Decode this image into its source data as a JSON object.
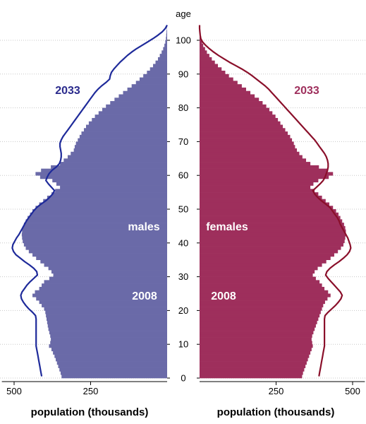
{
  "chart_data": {
    "type": "population-pyramid",
    "title": "",
    "axis_title": "age",
    "x_axis_label": "population (thousands)",
    "age_ticks": [
      0,
      10,
      20,
      30,
      40,
      50,
      60,
      70,
      80,
      90,
      100
    ],
    "pop_ticks": [
      500,
      250
    ],
    "pop_max": 540,
    "age_max": 105,
    "grid": true,
    "colors": {
      "male_bar": "#6a6aa8",
      "female_bar": "#9e2f5c",
      "male_line": "#1e2a9a",
      "female_line": "#8a0f2a",
      "male_text": "#2a2a8c",
      "female_text": "#9e2f5c",
      "grid": "#c8c8c8"
    },
    "labels": {
      "males": "males",
      "females": "females",
      "bar_year": "2008",
      "line_year": "2033"
    },
    "ages": [
      0,
      1,
      2,
      3,
      4,
      5,
      6,
      7,
      8,
      9,
      10,
      11,
      12,
      13,
      14,
      15,
      16,
      17,
      18,
      19,
      20,
      21,
      22,
      23,
      24,
      25,
      26,
      27,
      28,
      29,
      30,
      31,
      32,
      33,
      34,
      35,
      36,
      37,
      38,
      39,
      40,
      41,
      42,
      43,
      44,
      45,
      46,
      47,
      48,
      49,
      50,
      51,
      52,
      53,
      54,
      55,
      56,
      57,
      58,
      59,
      60,
      61,
      62,
      63,
      64,
      65,
      66,
      67,
      68,
      69,
      70,
      71,
      72,
      73,
      74,
      75,
      76,
      77,
      78,
      79,
      80,
      81,
      82,
      83,
      84,
      85,
      86,
      87,
      88,
      89,
      90,
      91,
      92,
      93,
      94,
      95,
      96,
      97,
      98,
      99,
      100,
      101,
      102,
      103,
      104
    ],
    "series": [
      {
        "name": "males 2008",
        "values": [
          345,
          348,
          352,
          356,
          360,
          364,
          368,
          373,
          378,
          386,
          382,
          380,
          382,
          385,
          388,
          390,
          392,
          394,
          396,
          398,
          402,
          410,
          418,
          428,
          440,
          432,
          418,
          410,
          402,
          385,
          372,
          378,
          388,
          402,
          414,
          428,
          440,
          452,
          462,
          468,
          472,
          474,
          475,
          474,
          472,
          468,
          462,
          456,
          448,
          440,
          430,
          418,
          405,
          392,
          378,
          366,
          350,
          362,
          375,
          415,
          430,
          412,
          380,
          350,
          338,
          325,
          315,
          305,
          302,
          298,
          292,
          286,
          280,
          272,
          265,
          256,
          246,
          236,
          224,
          212,
          200,
          186,
          172,
          158,
          144,
          130,
          116,
          102,
          90,
          78,
          66,
          56,
          46,
          38,
          30,
          24,
          18,
          13,
          9,
          6,
          4,
          3,
          2,
          1,
          0
        ]
      },
      {
        "name": "males 2033",
        "values": [
          410,
          412,
          414,
          416,
          418,
          420,
          422,
          424,
          426,
          428,
          428,
          428,
          428,
          428,
          428,
          428,
          428,
          428,
          430,
          440,
          452,
          462,
          470,
          476,
          478,
          474,
          466,
          458,
          448,
          436,
          424,
          426,
          436,
          450,
          466,
          480,
          494,
          502,
          506,
          504,
          498,
          492,
          484,
          478,
          472,
          466,
          460,
          452,
          444,
          436,
          426,
          412,
          396,
          384,
          374,
          368,
          378,
          388,
          396,
          392,
          386,
          376,
          362,
          352,
          348,
          346,
          346,
          348,
          350,
          350,
          346,
          340,
          332,
          324,
          316,
          308,
          300,
          292,
          284,
          276,
          268,
          260,
          252,
          244,
          236,
          226,
          214,
          200,
          188,
          186,
          182,
          174,
          164,
          154,
          142,
          130,
          116,
          100,
          82,
          64,
          46,
          30,
          16,
          6,
          0
        ]
      },
      {
        "name": "females 2008",
        "values": [
          335,
          338,
          342,
          346,
          350,
          354,
          358,
          362,
          366,
          370,
          368,
          366,
          368,
          372,
          376,
          380,
          384,
          388,
          392,
          396,
          400,
          404,
          410,
          418,
          428,
          420,
          408,
          400,
          392,
          380,
          370,
          376,
          386,
          400,
          414,
          428,
          440,
          452,
          462,
          470,
          474,
          476,
          478,
          478,
          476,
          472,
          466,
          460,
          454,
          446,
          436,
          424,
          412,
          400,
          388,
          376,
          362,
          372,
          388,
          422,
          436,
          418,
          390,
          362,
          348,
          336,
          326,
          318,
          312,
          308,
          302,
          296,
          288,
          280,
          272,
          264,
          256,
          248,
          238,
          228,
          218,
          206,
          194,
          180,
          166,
          152,
          138,
          124,
          110,
          96,
          84,
          72,
          60,
          50,
          40,
          32,
          24,
          18,
          12,
          8,
          5,
          3,
          2,
          1,
          0
        ]
      },
      {
        "name": "females 2033",
        "values": [
          390,
          392,
          394,
          396,
          398,
          400,
          402,
          404,
          406,
          408,
          408,
          408,
          408,
          408,
          408,
          408,
          408,
          408,
          410,
          420,
          432,
          444,
          454,
          462,
          466,
          460,
          450,
          440,
          430,
          420,
          412,
          416,
          426,
          440,
          456,
          470,
          482,
          490,
          494,
          492,
          488,
          484,
          478,
          472,
          466,
          460,
          456,
          450,
          442,
          434,
          426,
          412,
          398,
          386,
          376,
          370,
          382,
          394,
          404,
          410,
          414,
          418,
          420,
          420,
          418,
          414,
          408,
          400,
          392,
          384,
          376,
          366,
          356,
          346,
          336,
          326,
          316,
          306,
          296,
          286,
          276,
          266,
          256,
          246,
          236,
          226,
          214,
          200,
          186,
          172,
          156,
          138,
          118,
          98,
          80,
          62,
          46,
          32,
          20,
          10,
          4,
          2,
          1,
          0,
          0
        ]
      }
    ]
  }
}
